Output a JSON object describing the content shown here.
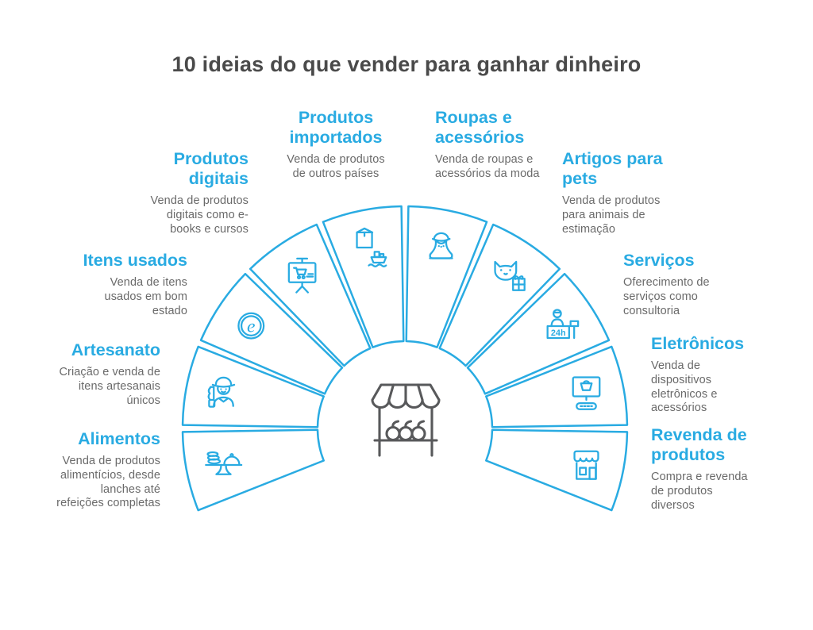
{
  "title": "10 ideias do que vender para ganhar dinheiro",
  "colors": {
    "accent": "#29ABE2",
    "title_text": "#4a4a4a",
    "body_text": "#6a6a6a",
    "stall": "#58595b"
  },
  "center_icon": "market-stall-icon",
  "categories": [
    {
      "id": "alimentos",
      "label": "Alimentos",
      "description": "Venda de produtos\nalimentícios, desde\nlanches até\nrefeições completas",
      "icon": "cake-stand-icon"
    },
    {
      "id": "artesanato",
      "label": "Artesanato",
      "description": "Criação e venda de\nitens artesanais\núnicos",
      "icon": "craftsman-icon"
    },
    {
      "id": "itens-usados",
      "label": "Itens usados",
      "description": "Venda de itens\nusados em bom\nestado",
      "icon": "e-commerce-circle-icon"
    },
    {
      "id": "produtos-digitais",
      "label": "Produtos\ndigitais",
      "description": "Venda de produtos\ndigitais como e-\nbooks e cursos",
      "icon": "presentation-cart-icon"
    },
    {
      "id": "produtos-importados",
      "label": "Produtos\nimportados",
      "description": "Venda de produtos\nde outros países",
      "icon": "package-ship-icon"
    },
    {
      "id": "roupas-acessorios",
      "label": "Roupas e\nacessórios",
      "description": "Venda de roupas e\nacessórios da moda",
      "icon": "necklace-bust-icon"
    },
    {
      "id": "artigos-pets",
      "label": "Artigos para\npets",
      "description": "Venda de produtos\npara animais de\nestimação",
      "icon": "cat-gift-icon"
    },
    {
      "id": "servicos",
      "label": "Serviços",
      "description": "Oferecimento de\nserviços como\nconsultoria",
      "icon": "reception-24h-icon"
    },
    {
      "id": "eletronicos",
      "label": "Eletrônicos",
      "description": "Venda de\ndispositivos\neletrônicos e\nacessórios",
      "icon": "monitor-basket-icon"
    },
    {
      "id": "revenda",
      "label": "Revenda de\nprodutos",
      "description": "Compra e revenda\nde produtos\ndiversos",
      "icon": "storefront-icon"
    }
  ],
  "icon_text": {
    "e_badge": "e",
    "hours_badge": "24h"
  }
}
